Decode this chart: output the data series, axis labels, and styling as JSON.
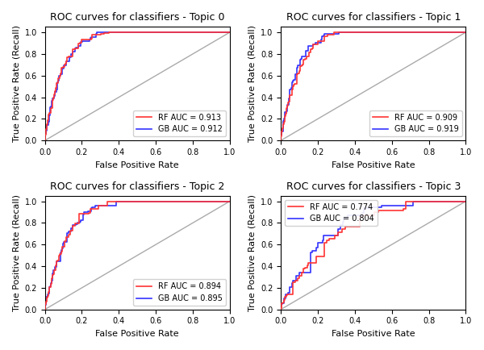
{
  "titles": [
    "ROC curves for classifiers - Topic 0",
    "ROC curves for classifiers - Topic 1",
    "ROC curves for classifiers - Topic 2",
    "ROC curves for classifiers - Topic 3"
  ],
  "auc_values": [
    {
      "RF": 0.913,
      "GB": 0.912
    },
    {
      "RF": 0.909,
      "GB": 0.919
    },
    {
      "RF": 0.894,
      "GB": 0.895
    },
    {
      "RF": 0.774,
      "GB": 0.804
    }
  ],
  "rf_color": "#FF3333",
  "gb_color": "#3333FF",
  "diagonal_color": "#AAAAAA",
  "xlabel": "False Positive Rate",
  "ylabel": "True Positive Rate (Recall)",
  "legend_locs": [
    "lower right",
    "lower right",
    "lower right",
    "upper left"
  ],
  "figsize": [
    6.0,
    4.34
  ],
  "dpi": 100
}
